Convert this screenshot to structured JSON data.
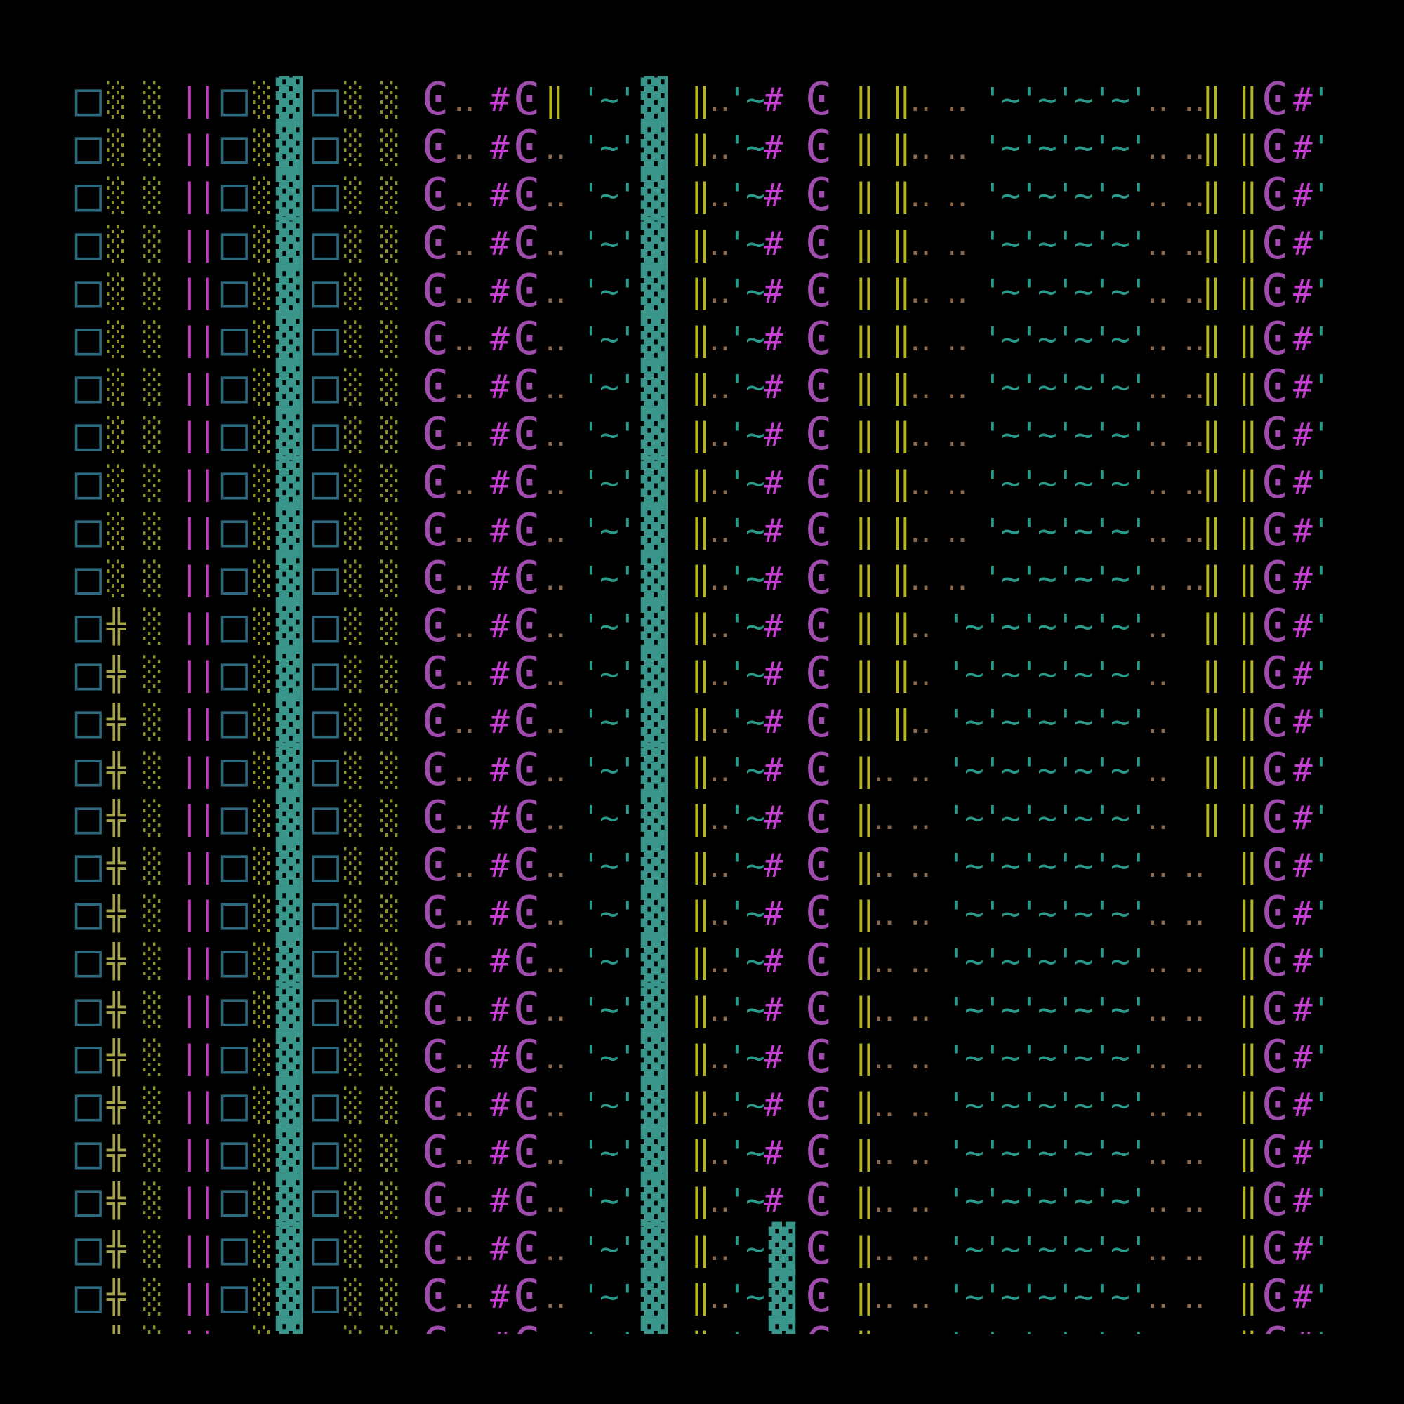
{
  "rows": [
    "□░ ░ ||□░▓□░ ░ Ͼ‥ #Ͼ‖ '~'▓ ‖‥'~# Ͼ ‖ ‖‥ ‥ '~'~'~'~'‥ ‥‖ ‖Ͼ#'",
    "□░ ░ ||□░▓□░ ░ Ͼ‥ #Ͼ‥ '~'▓ ‖‥'~# Ͼ ‖ ‖‥ ‥ '~'~'~'~'‥ ‥‖ ‖Ͼ#'",
    "□░ ░ ||□░▓□░ ░ Ͼ‥ #Ͼ‥ '~'▓ ‖‥'~# Ͼ ‖ ‖‥ ‥ '~'~'~'~'‥ ‥‖ ‖Ͼ#'",
    "□░ ░ ||□░▓□░ ░ Ͼ‥ #Ͼ‥ '~'▓ ‖‥'~# Ͼ ‖ ‖‥ ‥ '~'~'~'~'‥ ‥‖ ‖Ͼ#'",
    "□░ ░ ||□░▓□░ ░ Ͼ‥ #Ͼ‥ '~'▓ ‖‥'~# Ͼ ‖ ‖‥ ‥ '~'~'~'~'‥ ‥‖ ‖Ͼ#'",
    "□░ ░ ||□░▓□░ ░ Ͼ‥ #Ͼ‥ '~'▓ ‖‥'~# Ͼ ‖ ‖‥ ‥ '~'~'~'~'‥ ‥‖ ‖Ͼ#'",
    "□░ ░ ||□░▓□░ ░ Ͼ‥ #Ͼ‥ '~'▓ ‖‥'~# Ͼ ‖ ‖‥ ‥ '~'~'~'~'‥ ‥‖ ‖Ͼ#'",
    "□░ ░ ||□░▓□░ ░ Ͼ‥ #Ͼ‥ '~'▓ ‖‥'~# Ͼ ‖ ‖‥ ‥ '~'~'~'~'‥ ‥‖ ‖Ͼ#'",
    "□░ ░ ||□░▓□░ ░ Ͼ‥ #Ͼ‥ '~'▓ ‖‥'~# Ͼ ‖ ‖‥ ‥ '~'~'~'~'‥ ‥‖ ‖Ͼ#'",
    "□░ ░ ||□░▓□░ ░ Ͼ‥ #Ͼ‥ '~'▓ ‖‥'~# Ͼ ‖ ‖‥ ‥ '~'~'~'~'‥ ‥‖ ‖Ͼ#'",
    "□░ ░ ||□░▓□░ ░ Ͼ‥ #Ͼ‥ '~'▓ ‖‥'~# Ͼ ‖ ‖‥ ‥ '~'~'~'~'‥ ‥‖ ‖Ͼ#'",
    "□╬ ░ ||□░▓□░ ░ Ͼ‥ #Ͼ‥ '~'▓ ‖‥'~# Ͼ ‖ ‖‥ '~'~'~'~'~'‥  ‖ ‖Ͼ#'",
    "□╬ ░ ||□░▓□░ ░ Ͼ‥ #Ͼ‥ '~'▓ ‖‥'~# Ͼ ‖ ‖‥ '~'~'~'~'~'‥  ‖ ‖Ͼ#'",
    "□╬ ░ ||□░▓□░ ░ Ͼ‥ #Ͼ‥ '~'▓ ‖‥'~# Ͼ ‖ ‖‥ '~'~'~'~'~'‥  ‖ ‖Ͼ#'",
    "□╬ ░ ||□░▓□░ ░ Ͼ‥ #Ͼ‥ '~'▓ ‖‥'~# Ͼ ‖‥ ‥ '~'~'~'~'~'‥  ‖ ‖Ͼ#'",
    "□╬ ░ ||□░▓□░ ░ Ͼ‥ #Ͼ‥ '~'▓ ‖‥'~# Ͼ ‖‥ ‥ '~'~'~'~'~'‥  ‖ ‖Ͼ#'",
    "□╬ ░ ||□░▓□░ ░ Ͼ‥ #Ͼ‥ '~'▓ ‖‥'~# Ͼ ‖‥ ‥ '~'~'~'~'~'‥ ‥  ‖Ͼ#'",
    "□╬ ░ ||□░▓□░ ░ Ͼ‥ #Ͼ‥ '~'▓ ‖‥'~# Ͼ ‖‥ ‥ '~'~'~'~'~'‥ ‥  ‖Ͼ#'",
    "□╬ ░ ||□░▓□░ ░ Ͼ‥ #Ͼ‥ '~'▓ ‖‥'~# Ͼ ‖‥ ‥ '~'~'~'~'~'‥ ‥  ‖Ͼ#'",
    "□╬ ░ ||□░▓□░ ░ Ͼ‥ #Ͼ‥ '~'▓ ‖‥'~# Ͼ ‖‥ ‥ '~'~'~'~'~'‥ ‥  ‖Ͼ#'",
    "□╬ ░ ||□░▓□░ ░ Ͼ‥ #Ͼ‥ '~'▓ ‖‥'~# Ͼ ‖‥ ‥ '~'~'~'~'~'‥ ‥  ‖Ͼ#'",
    "□╬ ░ ||□░▓□░ ░ Ͼ‥ #Ͼ‥ '~'▓ ‖‥'~# Ͼ ‖‥ ‥ '~'~'~'~'~'‥ ‥  ‖Ͼ#'",
    "□╬ ░ ||□░▓□░ ░ Ͼ‥ #Ͼ‥ '~'▓ ‖‥'~# Ͼ ‖‥ ‥ '~'~'~'~'~'‥ ‥  ‖Ͼ#'",
    "□╬ ░ ||□░▓□░ ░ Ͼ‥ #Ͼ‥ '~'▓ ‖‥'~# Ͼ ‖‥ ‥ '~'~'~'~'~'‥ ‥  ‖Ͼ#'",
    "□╬ ░ ||□░▓□░ ░ Ͼ‥ #Ͼ‥ '~'▓ ‖‥'~▓Ͼ ‖‥ ‥ '~'~'~'~'~'‥ ‥  ‖Ͼ#'",
    "□╬ ░ ||□░▓□░ ░ Ͼ‥ #Ͼ‥ '~'▓ ‖‥'~▓Ͼ ‖‥ ‥ '~'~'~'~'~'‥ ‥  ‖Ͼ#'",
    "□╬ ░ ||□░▓□░ ░ Ͼ‥ #Ͼ‥ '~'▓ ‖‥'~▓Ͼ ‖‥ ‥ '~'~'~'~'~'‥ ‥  ‖Ͼ#'"
  ],
  "palette": [
    {
      "glyph": "□",
      "color": "#2c6a80",
      "wide": true
    },
    {
      "glyph": "░",
      "color": "#8c9128",
      "wide": false
    },
    {
      "glyph": "▓",
      "color": "#3a968a",
      "wide": true
    },
    {
      "glyph": "╬",
      "color": "#a6a54c",
      "wide": false
    },
    {
      "glyph": "|",
      "color": "#c23cc2",
      "wide": false
    },
    {
      "glyph": "‖",
      "color": "#b5b51e",
      "wide": false
    },
    {
      "glyph": "#",
      "color": "#c63ed2",
      "wide": false
    },
    {
      "glyph": "Ͼ",
      "color": "#a04cae",
      "wide": true
    },
    {
      "glyph": "‥",
      "color": "#8a6a4e",
      "wide": false
    },
    {
      "glyph": "'",
      "color": "#2a9a8a",
      "wide": false
    },
    {
      "glyph": "~",
      "color": "#2a9a8a",
      "wide": false
    }
  ]
}
